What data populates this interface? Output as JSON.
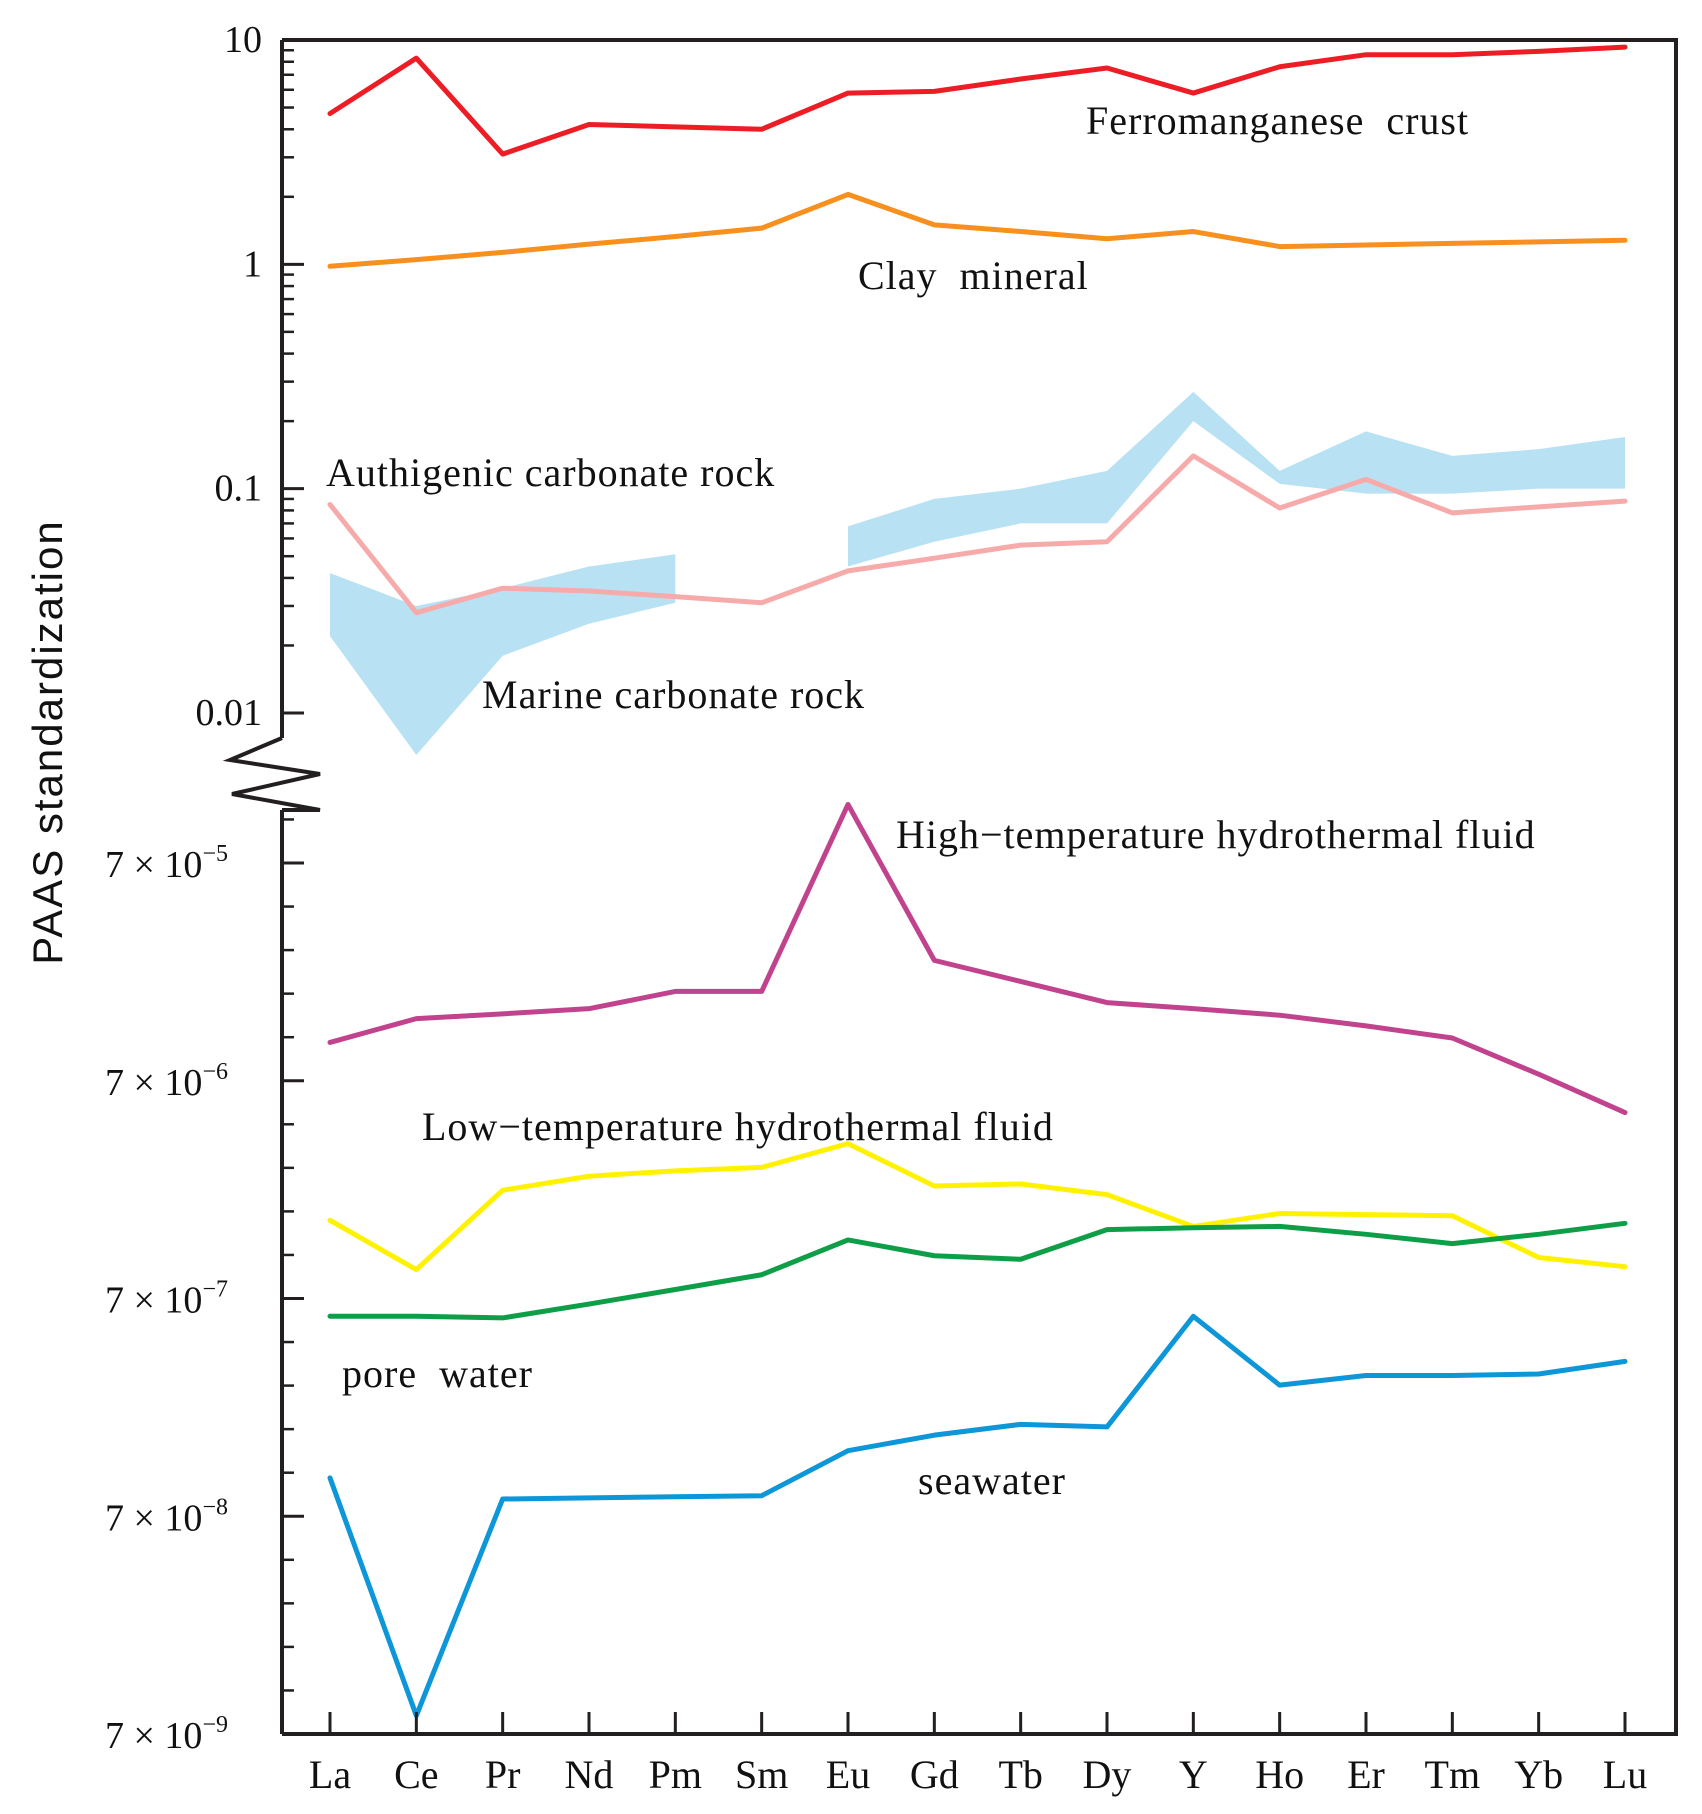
{
  "chart_data": {
    "type": "line",
    "ylabel": "PAAS standardization",
    "xlabel": "",
    "yscale": "log (broken axis)",
    "categories": [
      "La",
      "Ce",
      "Pr",
      "Nd",
      "Pm",
      "Sm",
      "Eu",
      "Gd",
      "Tb",
      "Dy",
      "Y",
      "Ho",
      "Er",
      "Tm",
      "Yb",
      "Lu"
    ],
    "upper_panel": {
      "ylim": [
        0.01,
        10
      ],
      "ticks": [
        {
          "label": "10",
          "value": 10
        },
        {
          "label": "1",
          "value": 1
        },
        {
          "label": "0.1",
          "value": 0.1
        },
        {
          "label": "0.01",
          "value": 0.01
        }
      ]
    },
    "lower_panel": {
      "ylim": [
        7e-09,
        0.00017
      ],
      "ticks": [
        {
          "label": "7 × 10",
          "exp": "−5",
          "value": 7e-05
        },
        {
          "label": "7 × 10",
          "exp": "−6",
          "value": 7e-06
        },
        {
          "label": "7 × 10",
          "exp": "−7",
          "value": 7e-07
        },
        {
          "label": "7 × 10",
          "exp": "−8",
          "value": 7e-08
        },
        {
          "label": "7 × 10",
          "exp": "−9",
          "value": 7e-09
        }
      ]
    },
    "series": [
      {
        "name": "Ferromanganese crust",
        "panel": "upper",
        "color": "#ee1c24",
        "values": [
          4.7,
          8.3,
          3.1,
          4.2,
          4.1,
          4.0,
          5.8,
          5.9,
          6.7,
          7.5,
          5.8,
          7.6,
          8.6,
          8.6,
          8.9,
          9.3
        ]
      },
      {
        "name": "Clay mineral",
        "panel": "upper",
        "color": "#f7901e",
        "values": [
          0.98,
          1.05,
          1.13,
          1.23,
          1.33,
          1.45,
          2.05,
          1.5,
          1.4,
          1.3,
          1.4,
          1.2,
          1.22,
          1.24,
          1.26,
          1.28
        ]
      },
      {
        "name": "Authigenic carbonate rock",
        "panel": "upper",
        "color": "#f7aaaa",
        "values": [
          0.085,
          0.028,
          0.036,
          0.035,
          0.033,
          0.031,
          0.043,
          0.049,
          0.056,
          0.058,
          0.14,
          0.082,
          0.11,
          0.078,
          0.083,
          0.088
        ]
      },
      {
        "name": "Marine carbonate rock",
        "panel": "upper",
        "color": "#b8e2f4",
        "kind": "range",
        "upper": [
          0.042,
          0.03,
          0.036,
          0.045,
          0.051,
          null,
          0.068,
          0.09,
          0.1,
          0.12,
          0.27,
          0.12,
          0.18,
          0.14,
          0.15,
          0.17
        ],
        "lower": [
          0.022,
          0.0065,
          0.018,
          0.025,
          0.031,
          null,
          0.045,
          0.058,
          0.07,
          0.07,
          0.2,
          0.105,
          0.095,
          0.095,
          0.1,
          0.1
        ]
      },
      {
        "name": "High−temperature hydrothermal fluid",
        "panel": "lower",
        "color": "#c1438e",
        "values": [
          1.05e-05,
          1.35e-05,
          1.42e-05,
          1.5e-05,
          1.8e-05,
          1.8e-05,
          0.00013,
          2.5e-05,
          2e-05,
          1.6e-05,
          1.5e-05,
          1.4e-05,
          1.25e-05,
          1.1e-05,
          7.5e-06,
          5e-06
        ]
      },
      {
        "name": "Low−temperature hydrothermal fluid",
        "panel": "lower",
        "color": "#fff200",
        "values": [
          1.6e-06,
          9.5e-07,
          2.2e-06,
          2.55e-06,
          2.7e-06,
          2.8e-06,
          3.6e-06,
          2.3e-06,
          2.35e-06,
          2.1e-06,
          1.5e-06,
          1.72e-06,
          1.7e-06,
          1.68e-06,
          1.08e-06,
          9.8e-07
        ]
      },
      {
        "name": "pore water",
        "panel": "lower",
        "color": "#0e9e47",
        "values": [
          5.8e-07,
          5.8e-07,
          5.7e-07,
          6.6e-07,
          7.7e-07,
          9e-07,
          1.3e-06,
          1.1e-06,
          1.06e-06,
          1.45e-06,
          1.48e-06,
          1.5e-06,
          1.38e-06,
          1.25e-06,
          1.38e-06,
          1.55e-06
        ]
      },
      {
        "name": "seawater",
        "panel": "lower",
        "color": "#0d96d8",
        "values": [
          1.05e-07,
          8.5e-09,
          8.4e-08,
          8.5e-08,
          8.6e-08,
          8.7e-08,
          1.4e-07,
          1.65e-07,
          1.85e-07,
          1.8e-07,
          5.8e-07,
          2.8e-07,
          3.1e-07,
          3.1e-07,
          3.15e-07,
          3.6e-07
        ]
      }
    ],
    "annotations": [
      "Ferromanganese  crust",
      "Clay  mineral",
      "Authigenic carbonate rock",
      "Marine carbonate rock",
      "High−temperature hydrothermal fluid",
      "Low−temperature hydrothermal fluid",
      "pore  water",
      "seawater"
    ]
  }
}
